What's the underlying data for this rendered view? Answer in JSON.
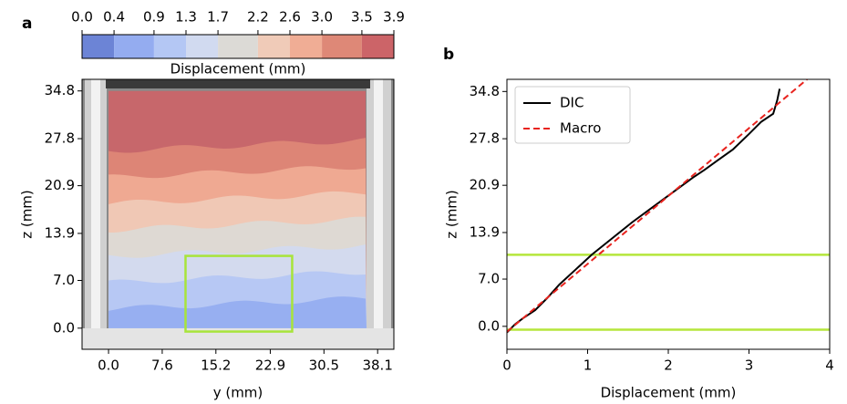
{
  "chart_data": [
    {
      "type": "image",
      "panel_label": "a",
      "xlabel": "y (mm)",
      "ylabel": "z (mm)",
      "xlim": [
        -3.75,
        40.4
      ],
      "ylim": [
        -3.1,
        36.5
      ],
      "xticks": [
        {
          "value": 0,
          "label": "0.0"
        },
        7.6,
        15.2,
        22.9,
        30.5,
        38.1
      ],
      "yticks": [
        {
          "value": 0,
          "label": "0.0"
        },
        {
          "value": 7,
          "label": "7.0"
        },
        13.9,
        20.9,
        27.8,
        34.8
      ],
      "colorbar": {
        "label": "Displacement (mm)",
        "ticks": [
          {
            "value": 0,
            "label": "0.0"
          },
          0.4,
          0.9,
          1.3,
          1.7,
          2.2,
          2.6,
          {
            "value": 3,
            "label": "3.0"
          },
          3.5,
          3.9
        ],
        "colors": [
          "#6c84d6",
          "#94acf0",
          "#b4c7f4",
          "#d1daf0",
          "#dcdad6",
          "#f0cbb8",
          "#f0ad95",
          "#de8877",
          "#cc6468"
        ]
      },
      "rectangle": {
        "x": [
          10.9,
          26.0
        ],
        "y": [
          -0.5,
          10.6
        ],
        "color": "#a8e43a"
      }
    },
    {
      "type": "line",
      "panel_label": "b",
      "xlabel": "Displacement (mm)",
      "ylabel": "z (mm)",
      "xlim": [
        0,
        4
      ],
      "ylim": [
        -3.4,
        36.6
      ],
      "xticks": [
        0,
        1,
        2,
        3,
        4
      ],
      "yticks": [
        {
          "value": 0,
          "label": "0.0"
        },
        {
          "value": 7,
          "label": "7.0"
        },
        13.9,
        20.9,
        27.8,
        34.8
      ],
      "legend": "upper left",
      "series": [
        {
          "name": "DIC",
          "color": "#000000",
          "dash": false,
          "x": [
            0,
            0.1,
            0.2,
            0.35,
            0.5,
            0.65,
            0.85,
            1.05,
            1.3,
            1.55,
            1.8,
            2.05,
            2.3,
            2.45,
            2.6,
            2.8,
            3.0,
            3.15,
            3.3,
            3.35,
            3.38
          ],
          "values": [
            -0.9,
            0.3,
            1.2,
            2.4,
            4.2,
            6.2,
            8.4,
            10.6,
            13.0,
            15.4,
            17.6,
            19.8,
            22.0,
            23.2,
            24.5,
            26.2,
            28.5,
            30.3,
            31.5,
            33.5,
            35.2
          ]
        },
        {
          "name": "Macro",
          "color": "#e8231e",
          "dash": true,
          "x": [
            0,
            3.72
          ],
          "values": [
            -0.8,
            36.6
          ]
        }
      ],
      "hlines": {
        "values": [
          10.6,
          -0.5
        ],
        "color": "#b5e63c"
      }
    }
  ]
}
